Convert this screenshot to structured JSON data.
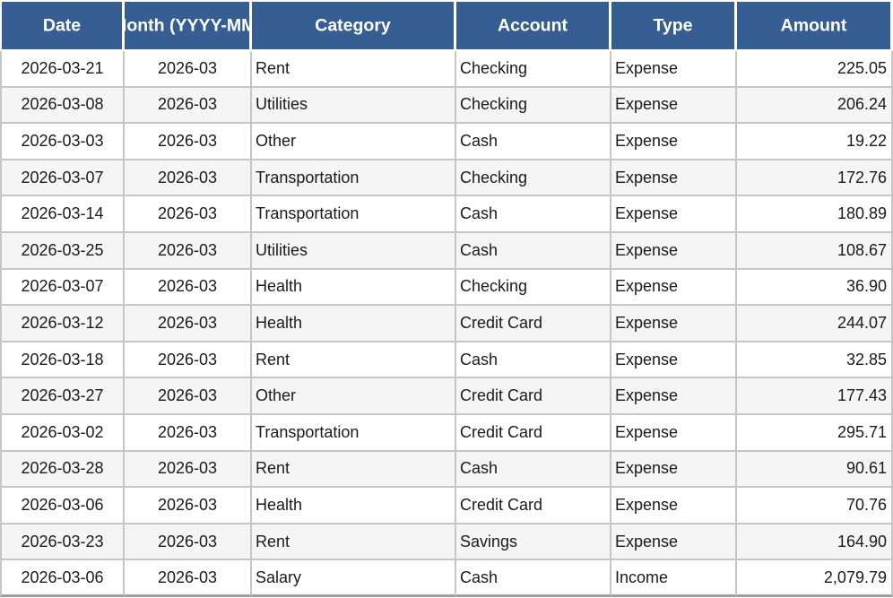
{
  "table": {
    "columns": [
      {
        "key": "date",
        "label": "Date"
      },
      {
        "key": "month",
        "label": "Month (YYYY-MM)"
      },
      {
        "key": "category",
        "label": "Category"
      },
      {
        "key": "account",
        "label": "Account"
      },
      {
        "key": "type",
        "label": "Type"
      },
      {
        "key": "amount",
        "label": "Amount"
      }
    ],
    "rows": [
      {
        "date": "2026-03-21",
        "month": "2026-03",
        "category": "Rent",
        "account": "Checking",
        "type": "Expense",
        "amount": "225.05"
      },
      {
        "date": "2026-03-08",
        "month": "2026-03",
        "category": "Utilities",
        "account": "Checking",
        "type": "Expense",
        "amount": "206.24"
      },
      {
        "date": "2026-03-03",
        "month": "2026-03",
        "category": "Other",
        "account": "Cash",
        "type": "Expense",
        "amount": "19.22"
      },
      {
        "date": "2026-03-07",
        "month": "2026-03",
        "category": "Transportation",
        "account": "Checking",
        "type": "Expense",
        "amount": "172.76"
      },
      {
        "date": "2026-03-14",
        "month": "2026-03",
        "category": "Transportation",
        "account": "Cash",
        "type": "Expense",
        "amount": "180.89"
      },
      {
        "date": "2026-03-25",
        "month": "2026-03",
        "category": "Utilities",
        "account": "Cash",
        "type": "Expense",
        "amount": "108.67"
      },
      {
        "date": "2026-03-07",
        "month": "2026-03",
        "category": "Health",
        "account": "Checking",
        "type": "Expense",
        "amount": "36.90"
      },
      {
        "date": "2026-03-12",
        "month": "2026-03",
        "category": "Health",
        "account": "Credit Card",
        "type": "Expense",
        "amount": "244.07"
      },
      {
        "date": "2026-03-18",
        "month": "2026-03",
        "category": "Rent",
        "account": "Cash",
        "type": "Expense",
        "amount": "32.85"
      },
      {
        "date": "2026-03-27",
        "month": "2026-03",
        "category": "Other",
        "account": "Credit Card",
        "type": "Expense",
        "amount": "177.43"
      },
      {
        "date": "2026-03-02",
        "month": "2026-03",
        "category": "Transportation",
        "account": "Credit Card",
        "type": "Expense",
        "amount": "295.71"
      },
      {
        "date": "2026-03-28",
        "month": "2026-03",
        "category": "Rent",
        "account": "Cash",
        "type": "Expense",
        "amount": "90.61"
      },
      {
        "date": "2026-03-06",
        "month": "2026-03",
        "category": "Health",
        "account": "Credit Card",
        "type": "Expense",
        "amount": "70.76"
      },
      {
        "date": "2026-03-23",
        "month": "2026-03",
        "category": "Rent",
        "account": "Savings",
        "type": "Expense",
        "amount": "164.90"
      },
      {
        "date": "2026-03-06",
        "month": "2026-03",
        "category": "Salary",
        "account": "Cash",
        "type": "Income",
        "amount": "2,079.79"
      }
    ],
    "colors": {
      "header_bg": "#365E92",
      "header_text": "#FFFFFF",
      "alt_row_bg": "#F5F5F5",
      "grid": "#C6C6C6",
      "bottom_border": "#9E9E9E",
      "body_text": "#1A1A1A"
    }
  }
}
